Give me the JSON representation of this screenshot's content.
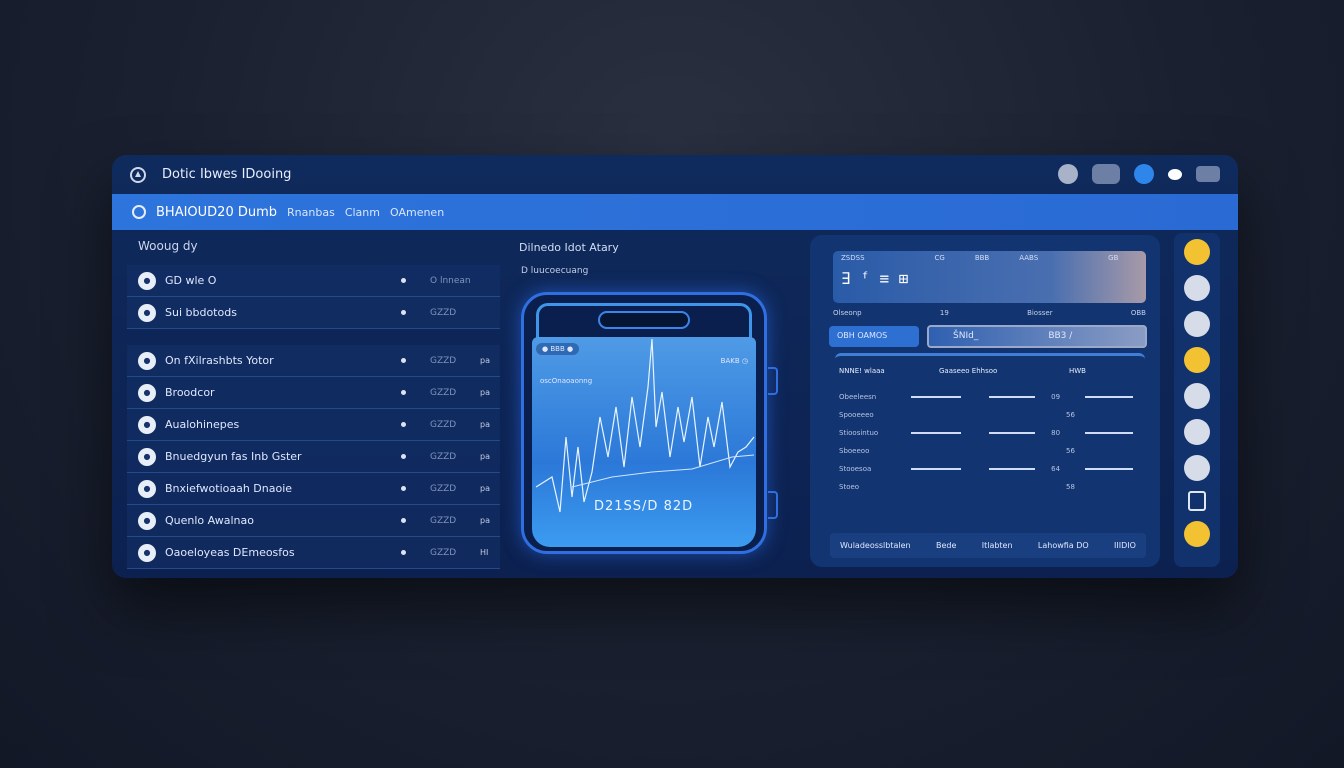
{
  "window": {
    "title": "Dotic Ibwes IDooing",
    "toolbar_icons": [
      "user-icon",
      "toggle-icon",
      "globe-icon",
      "cloud-icon",
      "folder-icon"
    ]
  },
  "band": {
    "primary": "BHAIOUD20 Dumb",
    "items": [
      "Rnanbas",
      "Clanm",
      "OAmenen"
    ]
  },
  "left": {
    "section_label": "Wooug dy",
    "rows": [
      {
        "label": "GD wle O",
        "value": "O lnnean",
        "tag": ""
      },
      {
        "label": "Sui bbdotods",
        "value": "GZZD",
        "tag": ""
      },
      {
        "label": "On fXilrashbts Yotor",
        "value": "GZZD",
        "tag": "pa"
      },
      {
        "label": "Broodcor",
        "value": "GZZD",
        "tag": "pa"
      },
      {
        "label": "Aualohinepes",
        "value": "GZZD",
        "tag": "pa"
      },
      {
        "label": "Bnuedgyun fas Inb Gster",
        "value": "GZZD",
        "tag": "pa"
      },
      {
        "label": "Bnxiefwotioaah Dnaoie",
        "value": "GZZD",
        "tag": "pa"
      },
      {
        "label": "Quenlo Awalnao",
        "value": "GZZD",
        "tag": "pa"
      },
      {
        "label": "Oaoeloyeas DEmeosfos",
        "value": "GZZD",
        "tag": "HI"
      }
    ]
  },
  "middle": {
    "title": "Dilnedo Idot Atary",
    "subtitle": "D luucoecuang",
    "screen": {
      "pill": "● BBB ●",
      "top_right": "BAKB ◷",
      "top_left": "oscOnaoaonng",
      "value": "D21SS/D 82D"
    }
  },
  "right": {
    "top_labels": [
      "ZSDSS",
      "CG",
      "BBB",
      "AABS",
      "GB"
    ],
    "top_value": "∃ ᶠ ≡ ⊞",
    "header": [
      "Olseonp",
      "19",
      "Biosser",
      "OBB"
    ],
    "tab": "OBH OAMOS",
    "field": [
      "ŠNId_",
      "BB3 /"
    ],
    "table_header": [
      "NNNE! wlaaa",
      "Gaaseeo Ehhsoo",
      "HWB"
    ],
    "rows": [
      {
        "label": "Obeeleesn",
        "v": "09"
      },
      {
        "label": "Spooeeeo",
        "v": "56"
      },
      {
        "label": "Stioosintuo",
        "v": "80"
      },
      {
        "label": "Sboeeoo",
        "v": "56"
      },
      {
        "label": "Stooesoa",
        "v": "64"
      },
      {
        "label": "Stoeo",
        "v": "58"
      }
    ],
    "footer": [
      "Wuladeosslbtalen",
      "Bede",
      "Itlabten",
      "Lahowfia DO",
      "IIIDIO"
    ]
  },
  "icon_column": [
    "coin-icon",
    "user-icon",
    "refresh-icon",
    "coin-icon",
    "globe-icon",
    "badge-icon",
    "shield-icon",
    "square-icon",
    "coin-icon"
  ]
}
